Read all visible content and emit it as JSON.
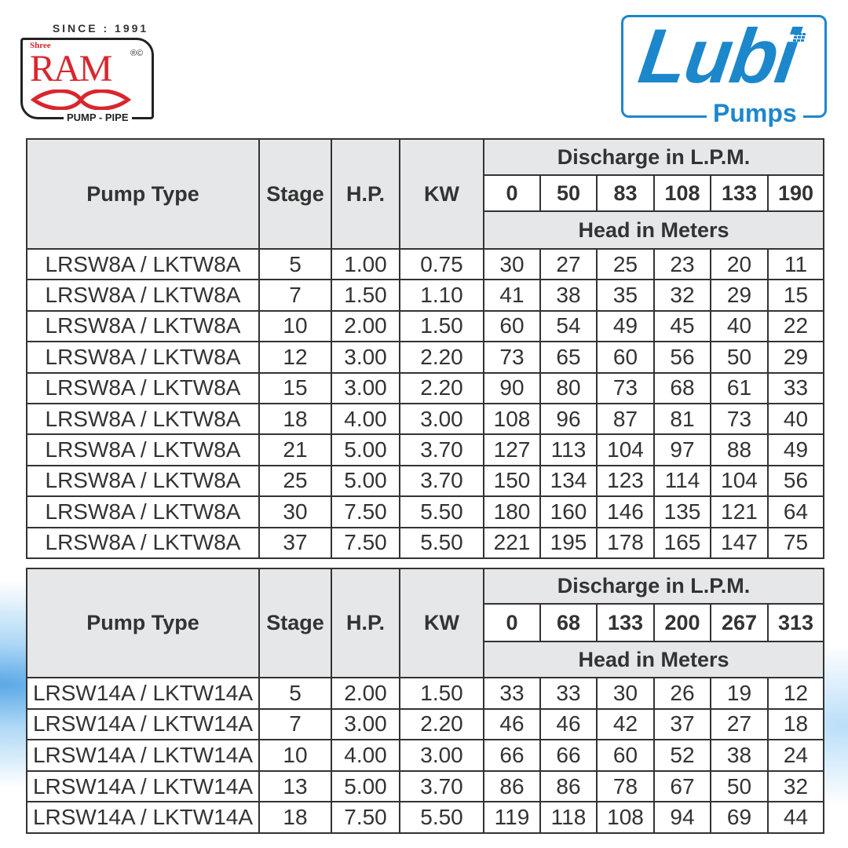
{
  "brand_left": {
    "since": "SINCE : 1991",
    "shree": "Shree",
    "name": "RAM",
    "reg": "®©",
    "tagline": "PUMP - PIPE",
    "color": "#d9262d"
  },
  "brand_right": {
    "name": "Lubi",
    "tagline": "Pumps",
    "color": "#1d87cc"
  },
  "tables": [
    {
      "headers": {
        "pump_type": "Pump Type",
        "stage": "Stage",
        "hp": "H.P.",
        "kw": "KW",
        "discharge": "Discharge in L.P.M.",
        "head": "Head in Meters"
      },
      "discharge_values": [
        "0",
        "50",
        "83",
        "108",
        "133",
        "190"
      ],
      "rows": [
        [
          "LRSW8A / LKTW8A",
          "5",
          "1.00",
          "0.75",
          "30",
          "27",
          "25",
          "23",
          "20",
          "11"
        ],
        [
          "LRSW8A / LKTW8A",
          "7",
          "1.50",
          "1.10",
          "41",
          "38",
          "35",
          "32",
          "29",
          "15"
        ],
        [
          "LRSW8A / LKTW8A",
          "10",
          "2.00",
          "1.50",
          "60",
          "54",
          "49",
          "45",
          "40",
          "22"
        ],
        [
          "LRSW8A / LKTW8A",
          "12",
          "3.00",
          "2.20",
          "73",
          "65",
          "60",
          "56",
          "50",
          "29"
        ],
        [
          "LRSW8A / LKTW8A",
          "15",
          "3.00",
          "2.20",
          "90",
          "80",
          "73",
          "68",
          "61",
          "33"
        ],
        [
          "LRSW8A / LKTW8A",
          "18",
          "4.00",
          "3.00",
          "108",
          "96",
          "87",
          "81",
          "73",
          "40"
        ],
        [
          "LRSW8A / LKTW8A",
          "21",
          "5.00",
          "3.70",
          "127",
          "113",
          "104",
          "97",
          "88",
          "49"
        ],
        [
          "LRSW8A / LKTW8A",
          "25",
          "5.00",
          "3.70",
          "150",
          "134",
          "123",
          "114",
          "104",
          "56"
        ],
        [
          "LRSW8A / LKTW8A",
          "30",
          "7.50",
          "5.50",
          "180",
          "160",
          "146",
          "135",
          "121",
          "64"
        ],
        [
          "LRSW8A / LKTW8A",
          "37",
          "7.50",
          "5.50",
          "221",
          "195",
          "178",
          "165",
          "147",
          "75"
        ]
      ]
    },
    {
      "headers": {
        "pump_type": "Pump Type",
        "stage": "Stage",
        "hp": "H.P.",
        "kw": "KW",
        "discharge": "Discharge in L.P.M.",
        "head": "Head in Meters"
      },
      "discharge_values": [
        "0",
        "68",
        "133",
        "200",
        "267",
        "313"
      ],
      "rows": [
        [
          "LRSW14A / LKTW14A",
          "5",
          "2.00",
          "1.50",
          "33",
          "33",
          "30",
          "26",
          "19",
          "12"
        ],
        [
          "LRSW14A / LKTW14A",
          "7",
          "3.00",
          "2.20",
          "46",
          "46",
          "42",
          "37",
          "27",
          "18"
        ],
        [
          "LRSW14A / LKTW14A",
          "10",
          "4.00",
          "3.00",
          "66",
          "66",
          "60",
          "52",
          "38",
          "24"
        ],
        [
          "LRSW14A / LKTW14A",
          "13",
          "5.00",
          "3.70",
          "86",
          "86",
          "78",
          "67",
          "50",
          "32"
        ],
        [
          "LRSW14A / LKTW14A",
          "18",
          "7.50",
          "5.50",
          "119",
          "118",
          "108",
          "94",
          "69",
          "44"
        ]
      ]
    }
  ]
}
